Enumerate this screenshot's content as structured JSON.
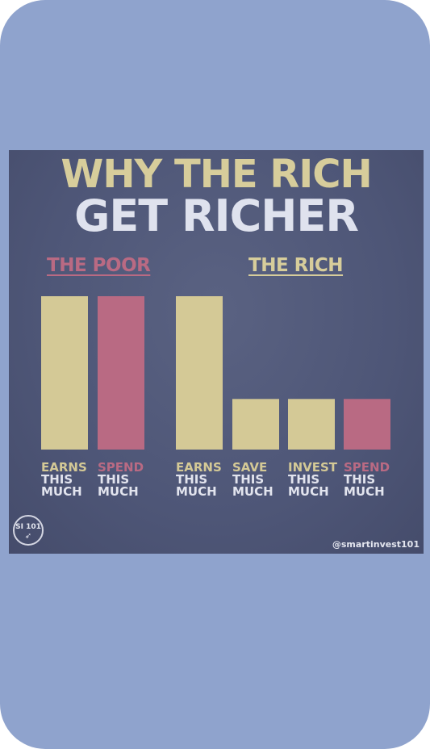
{
  "chart_data": {
    "type": "bar",
    "title": "WHY THE RICH",
    "subtitle": "GET RICHER",
    "groups": [
      {
        "name": "THE POOR",
        "bars": [
          {
            "label": [
              "EARNS",
              "THIS",
              "MUCH"
            ],
            "value": 10,
            "color": "#d4c996"
          },
          {
            "label": [
              "SPEND",
              "THIS",
              "MUCH"
            ],
            "value": 10,
            "color": "#b96a83"
          }
        ]
      },
      {
        "name": "THE RICH",
        "bars": [
          {
            "label": [
              "EARNS",
              "THIS",
              "MUCH"
            ],
            "value": 10,
            "color": "#d4c996"
          },
          {
            "label": [
              "SAVE",
              "THIS",
              "MUCH"
            ],
            "value": 3.3,
            "color": "#d4c996"
          },
          {
            "label": [
              "INVEST",
              "THIS",
              "MUCH"
            ],
            "value": 3.3,
            "color": "#d4c996"
          },
          {
            "label": [
              "SPEND",
              "THIS",
              "MUCH"
            ],
            "value": 3.3,
            "color": "#b96a83"
          }
        ]
      }
    ],
    "ylim": [
      0,
      10
    ],
    "grid": false,
    "colors": {
      "title1": "#d7cd9b",
      "title2": "#dfe2ee",
      "poor_label": "#b96a83",
      "rich_label": "#d7cd9b",
      "text_light": "#e2e4ee"
    }
  },
  "branding": {
    "logo_text": "SI 101",
    "logo_icon": "paper-plane-icon",
    "handle": "@smartinvest101"
  }
}
